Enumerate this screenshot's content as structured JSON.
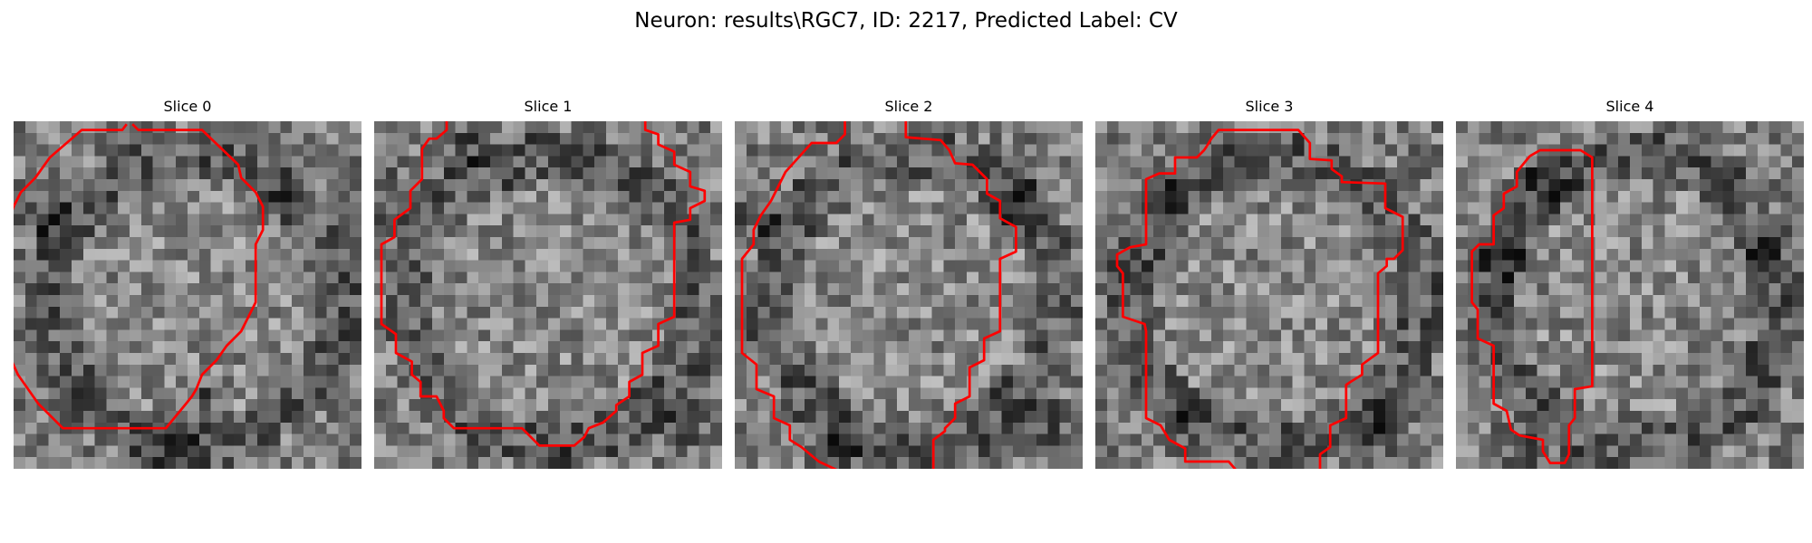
{
  "figure": {
    "title": "Neuron: results\\RGC7, ID: 2217, Predicted Label: CV"
  },
  "panels": [
    {
      "title": "Slice 0",
      "contour": [
        [
          8.2,
          0.2
        ],
        [
          8.6,
          0.6
        ],
        [
          13,
          0.6
        ],
        [
          15.5,
          3
        ],
        [
          15.7,
          3.9
        ],
        [
          16.7,
          4.9
        ],
        [
          17.2,
          5.9
        ],
        [
          17.2,
          7.5
        ],
        [
          16.7,
          8.5
        ],
        [
          16.7,
          12.5
        ],
        [
          15.7,
          14.5
        ],
        [
          14.7,
          15.5
        ],
        [
          14,
          16.5
        ],
        [
          13,
          17.5
        ],
        [
          12.6,
          18.5
        ],
        [
          12.3,
          19
        ],
        [
          11.9,
          19.5
        ],
        [
          10.5,
          21.2
        ],
        [
          3.4,
          21.2
        ],
        [
          1.7,
          19.5
        ],
        [
          0.3,
          17.5
        ],
        [
          -0.6,
          15.5
        ],
        [
          -0.6,
          7.5
        ],
        [
          0,
          5.9
        ],
        [
          0.5,
          4.9
        ],
        [
          1.5,
          3.9
        ],
        [
          2.5,
          2.5
        ],
        [
          4.7,
          0.6
        ],
        [
          7.5,
          0.6
        ],
        [
          7.8,
          0.2
        ]
      ],
      "dark_spots": [
        [
          17.5,
          5.3,
          1.6
        ],
        [
          13,
          18.5,
          1.4
        ],
        [
          1.5,
          6,
          1.8
        ],
        [
          10.5,
          22,
          1.7
        ]
      ]
    },
    {
      "title": "Slice 1",
      "contour": [
        [
          5,
          -0.1
        ],
        [
          5,
          0.6
        ],
        [
          4.3,
          1.2
        ],
        [
          3.8,
          1.2
        ],
        [
          3.3,
          1.9
        ],
        [
          3.3,
          4
        ],
        [
          2.5,
          4.8
        ],
        [
          2.5,
          6
        ],
        [
          1.4,
          6.8
        ],
        [
          1.4,
          8
        ],
        [
          0.5,
          8.5
        ],
        [
          0.5,
          14
        ],
        [
          1.5,
          14.7
        ],
        [
          1.5,
          16
        ],
        [
          2.6,
          16.6
        ],
        [
          2.6,
          17.5
        ],
        [
          3.2,
          18
        ],
        [
          3.2,
          19
        ],
        [
          4.3,
          19
        ],
        [
          4.8,
          20
        ],
        [
          4.8,
          20.5
        ],
        [
          5.5,
          21.2
        ],
        [
          10.2,
          21.2
        ],
        [
          11.4,
          22.4
        ],
        [
          13.8,
          22.4
        ],
        [
          14.5,
          21.8
        ],
        [
          14.8,
          21.2
        ],
        [
          15.8,
          20.8
        ],
        [
          16.7,
          20
        ],
        [
          16.7,
          19.6
        ],
        [
          17.6,
          19
        ],
        [
          17.6,
          18
        ],
        [
          18.5,
          17.5
        ],
        [
          18.5,
          16
        ],
        [
          19.6,
          15.5
        ],
        [
          19.6,
          14
        ],
        [
          20.7,
          13.5
        ],
        [
          20.7,
          7
        ],
        [
          21.8,
          6.8
        ],
        [
          21.8,
          6
        ],
        [
          22.8,
          5.5
        ],
        [
          22.8,
          4.8
        ],
        [
          21.8,
          4.5
        ],
        [
          21.8,
          3.5
        ],
        [
          20.7,
          3
        ],
        [
          20.7,
          2.1
        ],
        [
          19.6,
          1.6
        ],
        [
          19.6,
          0.9
        ],
        [
          18.7,
          0.6
        ],
        [
          18.7,
          -0.1
        ]
      ],
      "dark_spots": [
        [
          1,
          5,
          1.8
        ],
        [
          6,
          1.5,
          1.5
        ],
        [
          21,
          20.5,
          1.6
        ],
        [
          12,
          23,
          1.2
        ]
      ]
    },
    {
      "title": "Slice 2",
      "contour": [
        [
          7.6,
          -0.1
        ],
        [
          7.6,
          0.9
        ],
        [
          7,
          1.5
        ],
        [
          5.3,
          1.5
        ],
        [
          4.4,
          2.5
        ],
        [
          3.5,
          3.5
        ],
        [
          3,
          4.5
        ],
        [
          2.5,
          5.5
        ],
        [
          1.8,
          6.5
        ],
        [
          1.3,
          7.5
        ],
        [
          1.3,
          8.5
        ],
        [
          0.5,
          9.5
        ],
        [
          0.5,
          16
        ],
        [
          1.5,
          16.8
        ],
        [
          1.5,
          18.5
        ],
        [
          2.7,
          19
        ],
        [
          2.7,
          20.5
        ],
        [
          3.8,
          21
        ],
        [
          3.8,
          22
        ],
        [
          4.6,
          22.5
        ],
        [
          5.8,
          23.5
        ],
        [
          7.3,
          24.2
        ]
      ],
      "contour2": [
        [
          11.8,
          -0.1
        ],
        [
          11.8,
          1.1
        ],
        [
          14.2,
          1.3
        ],
        [
          14.8,
          2
        ],
        [
          15.2,
          2.9
        ],
        [
          16.4,
          3
        ],
        [
          17.4,
          4
        ],
        [
          17.4,
          5
        ],
        [
          18.3,
          5.5
        ],
        [
          18.3,
          6.7
        ],
        [
          19.4,
          7.3
        ],
        [
          19.4,
          9
        ],
        [
          18.3,
          9.5
        ],
        [
          18.3,
          14.5
        ],
        [
          17.2,
          15
        ],
        [
          17.2,
          16.5
        ],
        [
          16.2,
          17
        ],
        [
          16.2,
          19
        ],
        [
          15.2,
          19.5
        ],
        [
          15.2,
          20.5
        ],
        [
          14.5,
          21.2
        ],
        [
          14.5,
          21.4
        ],
        [
          13.7,
          22
        ],
        [
          13.7,
          24.2
        ]
      ],
      "dark_spots": [
        [
          0.8,
          6,
          1.8
        ],
        [
          19.5,
          5,
          1.6
        ],
        [
          21,
          20.5,
          1.5
        ],
        [
          7,
          22.5,
          1.8
        ]
      ]
    },
    {
      "title": "Slice 3",
      "contour": [
        [
          7.7,
          1.7
        ],
        [
          8,
          1.2
        ],
        [
          8.5,
          0.6
        ],
        [
          14,
          0.6
        ],
        [
          14.8,
          1.5
        ],
        [
          14.8,
          2.6
        ],
        [
          16.3,
          2.7
        ],
        [
          16.3,
          3.3
        ],
        [
          17,
          3.8
        ],
        [
          17,
          4.2
        ],
        [
          20,
          4.3
        ],
        [
          20,
          6
        ],
        [
          21.2,
          6.6
        ],
        [
          21.2,
          8.9
        ],
        [
          20.6,
          9.5
        ],
        [
          20.1,
          9.5
        ],
        [
          20.1,
          10
        ],
        [
          19.5,
          10.5
        ],
        [
          19.5,
          16
        ],
        [
          18.4,
          16.8
        ],
        [
          18.4,
          17.5
        ],
        [
          17.6,
          18
        ],
        [
          17.3,
          18.2
        ],
        [
          17.3,
          20.5
        ],
        [
          16.2,
          21
        ],
        [
          16.2,
          22.5
        ],
        [
          15.5,
          23
        ],
        [
          15.5,
          24.1
        ]
      ],
      "contour2": [
        [
          7.7,
          1.7
        ],
        [
          7.5,
          2
        ],
        [
          7,
          2.5
        ],
        [
          5.5,
          2.5
        ],
        [
          5.5,
          3.6
        ],
        [
          4.4,
          3.6
        ],
        [
          3.5,
          4
        ],
        [
          3.5,
          8.5
        ],
        [
          2.4,
          8.7
        ],
        [
          1.5,
          9.2
        ],
        [
          1.5,
          10
        ],
        [
          1.9,
          10.5
        ],
        [
          1.9,
          13.5
        ],
        [
          3.4,
          14
        ],
        [
          3.5,
          14.5
        ],
        [
          3.5,
          20.5
        ],
        [
          4.5,
          21
        ],
        [
          5.1,
          22
        ],
        [
          6.2,
          22.6
        ],
        [
          6.2,
          23.5
        ],
        [
          9.2,
          23.5
        ],
        [
          9.8,
          24.2
        ]
      ],
      "dark_spots": [
        [
          1,
          9.5,
          1.6
        ],
        [
          4,
          5,
          1.6
        ],
        [
          19,
          21,
          1.8
        ],
        [
          5,
          20.5,
          1.5
        ]
      ]
    },
    {
      "title": "Slice 4",
      "contour": [
        [
          5.1,
          2.4
        ],
        [
          5.8,
          2
        ],
        [
          8.6,
          2
        ],
        [
          9.4,
          2.5
        ],
        [
          9.4,
          18.3
        ],
        [
          8.2,
          18.5
        ],
        [
          8.2,
          20.5
        ],
        [
          7.8,
          21
        ],
        [
          7.8,
          23
        ],
        [
          7.5,
          23.6
        ],
        [
          6.5,
          23.6
        ],
        [
          6,
          22.8
        ],
        [
          6,
          22
        ],
        [
          4.4,
          21.7
        ],
        [
          3.8,
          21.3
        ],
        [
          3.5,
          20
        ],
        [
          2.6,
          19.5
        ],
        [
          2.6,
          15.5
        ],
        [
          1.5,
          15
        ],
        [
          1.5,
          13
        ],
        [
          1.1,
          12.5
        ],
        [
          1.1,
          9
        ],
        [
          1.6,
          8.5
        ],
        [
          2.6,
          8.5
        ],
        [
          2.6,
          6.5
        ],
        [
          3.3,
          6
        ],
        [
          3.3,
          5
        ],
        [
          4.2,
          4.5
        ],
        [
          4.2,
          3.5
        ],
        [
          5.1,
          2.4
        ]
      ],
      "dark_spots": [
        [
          3.5,
          9,
          2
        ],
        [
          6,
          4,
          1.8
        ],
        [
          4.5,
          22,
          1.5
        ],
        [
          20,
          9,
          1.6
        ]
      ]
    }
  ]
}
